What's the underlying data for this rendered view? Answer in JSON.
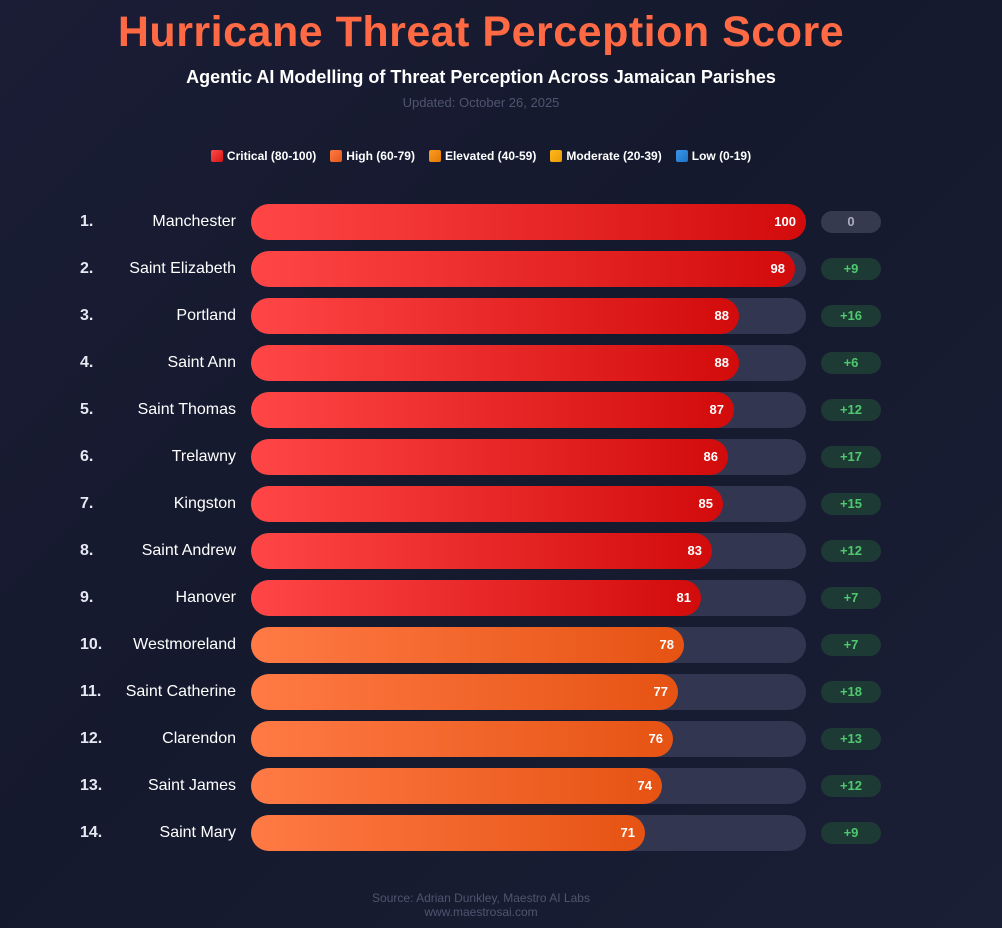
{
  "title": "Hurricane Threat Perception Score",
  "subtitle": "Agentic AI Modelling of Threat Perception Across Jamaican Parishes",
  "updated": "Updated: October 26, 2025",
  "legend": [
    {
      "label": "Critical (80-100)",
      "color": "#e8202a"
    },
    {
      "label": "High (60-79)",
      "color": "#f26a35"
    },
    {
      "label": "Elevated (40-59)",
      "color": "#f08a12"
    },
    {
      "label": "Moderate (20-39)",
      "color": "#f5a80d"
    },
    {
      "label": "Low (0-19)",
      "color": "#2a86d8"
    }
  ],
  "footer": {
    "source": "Source: Adrian Dunkley, Maestro AI Labs",
    "url": "www.maestrosai.com"
  },
  "chart_data": {
    "type": "bar",
    "orientation": "horizontal",
    "xlim": [
      0,
      100
    ],
    "categories": [
      "Manchester",
      "Saint Elizabeth",
      "Portland",
      "Saint Ann",
      "Saint Thomas",
      "Trelawny",
      "Kingston",
      "Saint Andrew",
      "Hanover",
      "Westmoreland",
      "Saint Catherine",
      "Clarendon",
      "Saint James",
      "Saint Mary"
    ],
    "ranks": [
      "1.",
      "2.",
      "3.",
      "4.",
      "5.",
      "6.",
      "7.",
      "8.",
      "9.",
      "10.",
      "11.",
      "12.",
      "13.",
      "14."
    ],
    "values": [
      100,
      98,
      88,
      88,
      87,
      86,
      85,
      83,
      81,
      78,
      77,
      76,
      74,
      71
    ],
    "changes": [
      "0",
      "+9",
      "+16",
      "+6",
      "+12",
      "+17",
      "+15",
      "+12",
      "+7",
      "+7",
      "+18",
      "+13",
      "+12",
      "+9"
    ],
    "level_colors": {
      "critical": "#e8202a",
      "high": "#f26a35",
      "change_positive": "#4fc96f",
      "change_zero": "#a9adbe"
    }
  }
}
